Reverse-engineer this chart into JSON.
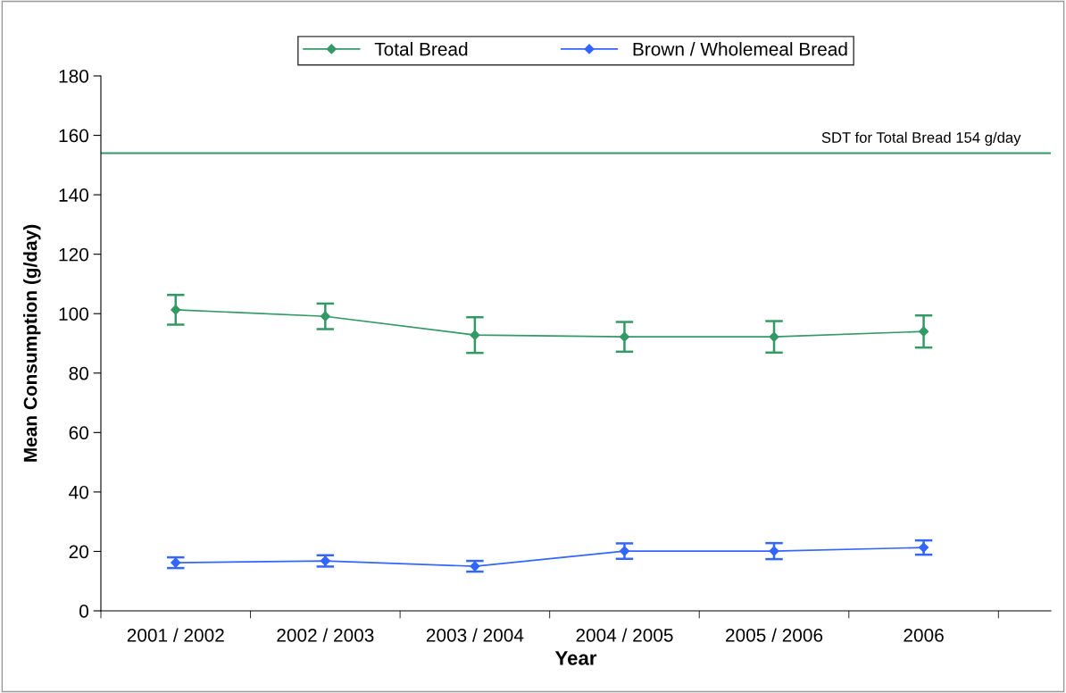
{
  "chart_data": {
    "type": "line",
    "xlabel": "Year",
    "ylabel": "Mean Consumption (g/day)",
    "categories": [
      "2001 / 2002",
      "2002 / 2003",
      "2003 / 2004",
      "2004 / 2005",
      "2005 / 2006",
      "2006"
    ],
    "series": [
      {
        "name": "Total Bread",
        "color": "#339966",
        "values": [
          101.3,
          99.1,
          92.8,
          92.2,
          92.2,
          94.0
        ],
        "errors": [
          5,
          4.3,
          6,
          5,
          5.3,
          5.4
        ]
      },
      {
        "name": "Brown / Wholemeal Bread",
        "color": "#3366ff",
        "values": [
          16.2,
          16.8,
          15.0,
          20.1,
          20.1,
          21.3
        ],
        "errors": [
          1.8,
          1.9,
          1.8,
          2.6,
          2.7,
          2.4
        ]
      }
    ],
    "ylim": [
      0,
      180
    ],
    "yticks": [
      0,
      20,
      40,
      60,
      80,
      100,
      120,
      140,
      160,
      180
    ],
    "ref_lines": [
      {
        "axis": "y",
        "value": 154,
        "label": "SDT for Total Bread 154 g/day",
        "color": "#339966"
      }
    ],
    "marker": "diamond",
    "line_style": "solid",
    "grid": false,
    "legend": "top"
  }
}
